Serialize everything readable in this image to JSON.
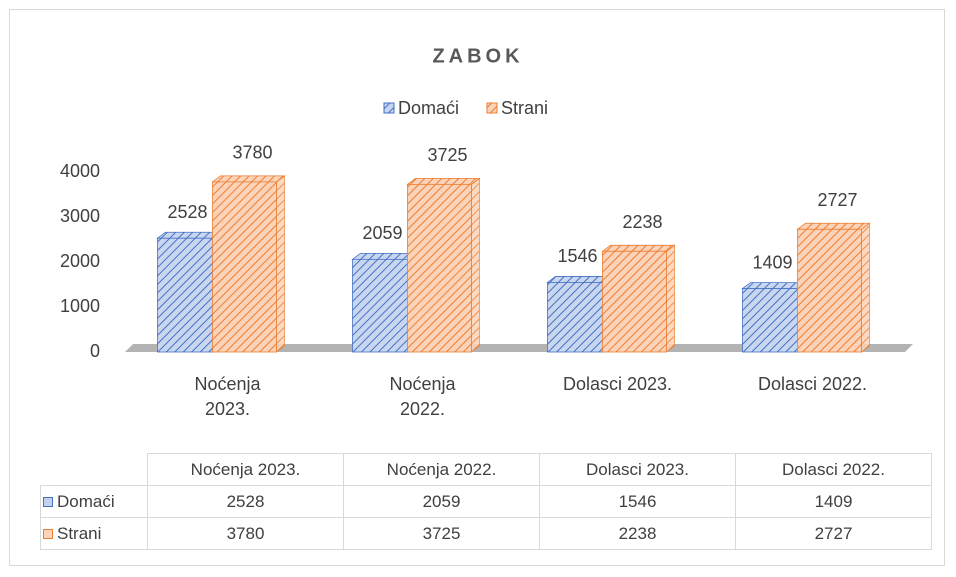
{
  "chart_data": {
    "type": "bar3d",
    "title": "ZABOK",
    "categories": [
      "Noćenja 2023.",
      "Noćenja 2022.",
      "Dolasci 2023.",
      "Dolasci 2022."
    ],
    "series": [
      {
        "name": "Domaći",
        "color": "#4472c4",
        "values": [
          2528,
          2059,
          1546,
          1409
        ]
      },
      {
        "name": "Strani",
        "color": "#ed7d31",
        "values": [
          3780,
          3725,
          2238,
          2727
        ]
      }
    ],
    "ylim": [
      0,
      4000
    ],
    "yticks": [
      0,
      1000,
      2000,
      3000,
      4000
    ]
  }
}
